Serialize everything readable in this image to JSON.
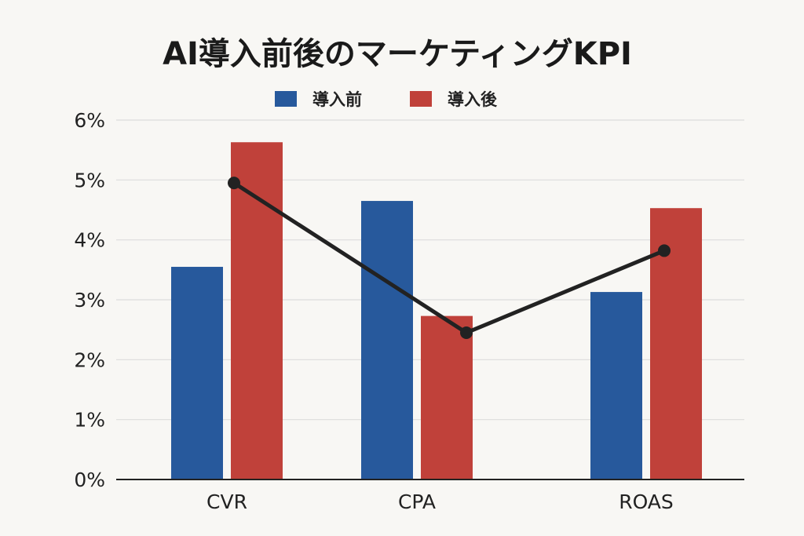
{
  "chart_data": {
    "type": "bar",
    "title": "AI導入前後のマーケティングKPI",
    "categories": [
      "CVR",
      "CPA",
      "ROAS"
    ],
    "series": [
      {
        "name": "導入前",
        "type": "bar",
        "values": [
          3.55,
          4.65,
          3.13
        ]
      },
      {
        "name": "導入後",
        "type": "bar",
        "values": [
          5.63,
          2.73,
          4.53
        ]
      },
      {
        "type": "line",
        "values": [
          4.95,
          2.45,
          3.82
        ]
      }
    ],
    "ylim": [
      0,
      6
    ],
    "yticks": [
      "0%",
      "1%",
      "2%",
      "3%",
      "4%",
      "5%",
      "6%"
    ],
    "xlabel": "",
    "ylabel": "",
    "grid": true,
    "legend_position": "top-center",
    "colors": {
      "before": "#27599c",
      "after": "#c0413a",
      "line": "#222222"
    }
  }
}
